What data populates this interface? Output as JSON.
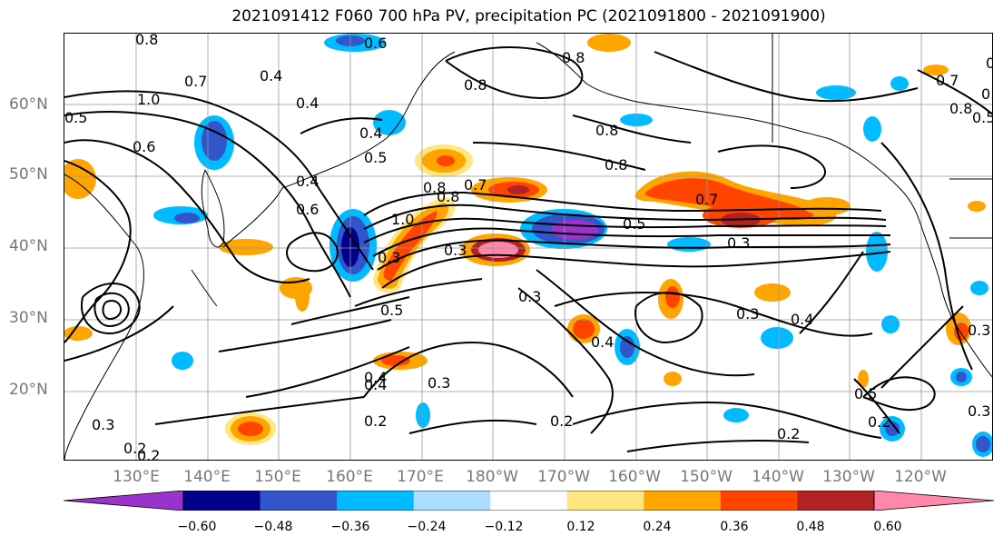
{
  "title": "2021091412 F060 700 hPa PV, precipitation PC (2021091800 - 2021091900)",
  "lat_labels": [
    "60°N",
    "50°N",
    "40°N",
    "30°N",
    "20°N"
  ],
  "lon_labels": [
    "130°E",
    "140°E",
    "150°E",
    "160°E",
    "170°E",
    "180°W",
    "170°W",
    "160°W",
    "150°W",
    "140°W",
    "130°W",
    "120°W"
  ],
  "colorbar": {
    "colors": [
      "#9933cc",
      "#00008b",
      "#3355cc",
      "#00bbff",
      "#aaddff",
      "#ffffff",
      "#ffe680",
      "#ffa500",
      "#ff4400",
      "#b22222",
      "#ff88aa"
    ],
    "ticks": [
      "−0.60",
      "−0.48",
      "−0.36",
      "−0.24",
      "−0.12",
      "0.12",
      "0.24",
      "0.36",
      "0.48",
      "0.60"
    ]
  },
  "contour_labels": [
    "0.8",
    "0.6",
    "0.8",
    "0.4",
    "0.7",
    "0.5",
    "1.0",
    "0.6",
    "0.8",
    "0.4",
    "0.5",
    "0.4",
    "0.8",
    "0.7",
    "0.8",
    "0.4",
    "0.5",
    "0.3",
    "0.6",
    "1.0",
    "0.8",
    "0.5",
    "0.7",
    "0.3",
    "0.3",
    "0.3",
    "0.5",
    "0.4",
    "0.4",
    "0.4",
    "0.3",
    "0.2",
    "0.2",
    "0.4",
    "0.2",
    "0.2",
    "0.3",
    "0.2",
    "0.5",
    "0.3",
    "0.2",
    "0.8",
    "0.7",
    "0.3",
    "0.3",
    "0.4",
    "0.5",
    "0.8"
  ]
}
